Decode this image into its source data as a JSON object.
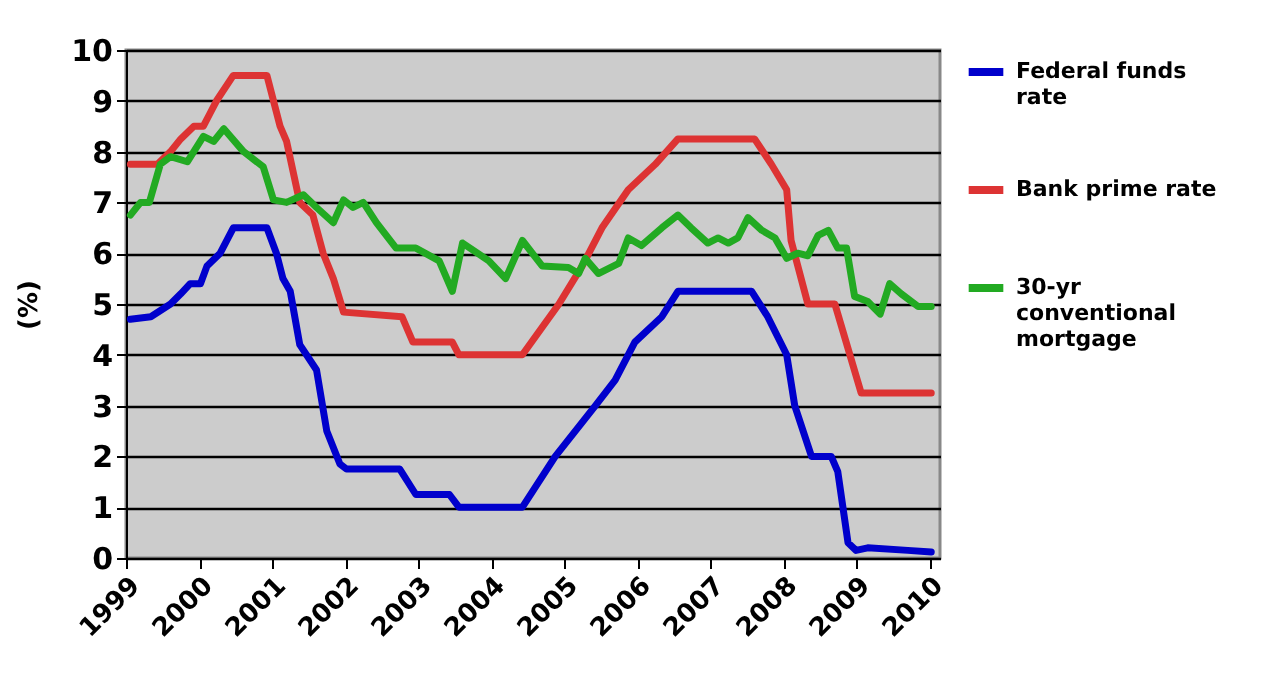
{
  "chart_data": {
    "type": "line",
    "ylabel": "(%)",
    "xlim": [
      1999,
      2010.15
    ],
    "xticks": [
      1999,
      2000,
      2001,
      2002,
      2003,
      2004,
      2005,
      2006,
      2007,
      2008,
      2009,
      2010
    ],
    "ylim": [
      0,
      10
    ],
    "yticks": [
      0,
      1,
      2,
      3,
      4,
      5,
      6,
      7,
      8,
      9,
      10
    ],
    "grid": "y",
    "legend": "right",
    "line_style": "solid",
    "series": [
      {
        "name": "Federal funds rate",
        "color": "#0000cc",
        "x": [
          1999.06,
          1999.34,
          1999.61,
          1999.75,
          1999.88,
          2000.02,
          2000.11,
          2000.29,
          2000.47,
          2000.93,
          2001.06,
          2001.15,
          2001.25,
          2001.38,
          2001.61,
          2001.75,
          2001.93,
          2002.02,
          2002.75,
          2002.97,
          2003.43,
          2003.56,
          2004.43,
          2004.88,
          2005.43,
          2005.7,
          2005.97,
          2006.34,
          2006.56,
          2007.57,
          2007.79,
          2008.05,
          2008.16,
          2008.39,
          2008.66,
          2008.75,
          2008.89,
          2009.0,
          2009.16,
          2009.71,
          2010.03
        ],
        "values": [
          4.7,
          4.75,
          5.0,
          5.2,
          5.4,
          5.4,
          5.75,
          6.0,
          6.5,
          6.5,
          6.0,
          5.5,
          5.25,
          4.2,
          3.7,
          2.5,
          1.85,
          1.75,
          1.75,
          1.25,
          1.25,
          1.0,
          1.0,
          2.0,
          3.0,
          3.5,
          4.25,
          4.75,
          5.25,
          5.25,
          4.75,
          4.0,
          3.0,
          2.0,
          2.0,
          1.7,
          0.3,
          0.15,
          0.2,
          0.15,
          0.12
        ]
      },
      {
        "name": "Bank prime rate",
        "color": "#dd3333",
        "x": [
          1999.06,
          1999.43,
          1999.61,
          1999.75,
          1999.93,
          2000.06,
          2000.15,
          2000.24,
          2000.47,
          2000.93,
          2001.11,
          2001.2,
          2001.38,
          2001.56,
          2001.7,
          2001.84,
          2001.98,
          2002.78,
          2002.93,
          2003.47,
          2003.56,
          2004.43,
          2004.93,
          2005.25,
          2005.52,
          2005.88,
          2006.25,
          2006.56,
          2007.61,
          2007.84,
          2008.05,
          2008.11,
          2008.34,
          2008.71,
          2009.07,
          2010.03
        ],
        "values": [
          7.75,
          7.75,
          8.0,
          8.25,
          8.5,
          8.5,
          8.75,
          9.0,
          9.5,
          9.5,
          8.5,
          8.2,
          7.0,
          6.75,
          6.0,
          5.5,
          4.84,
          4.75,
          4.25,
          4.25,
          4.0,
          4.0,
          5.0,
          5.75,
          6.5,
          7.25,
          7.75,
          8.25,
          8.25,
          7.75,
          7.25,
          6.25,
          5.0,
          5.0,
          3.25,
          3.25
        ]
      },
      {
        "name": "30-yr conventional mortgage",
        "color": "#22aa22",
        "x": [
          1999.06,
          1999.2,
          1999.32,
          1999.47,
          1999.61,
          1999.84,
          2000.06,
          2000.2,
          2000.34,
          2000.61,
          2000.88,
          2001.02,
          2001.2,
          2001.43,
          2001.61,
          2001.84,
          2001.98,
          2002.11,
          2002.25,
          2002.43,
          2002.7,
          2002.97,
          2003.29,
          2003.47,
          2003.61,
          2003.97,
          2004.2,
          2004.43,
          2004.7,
          2005.06,
          2005.2,
          2005.29,
          2005.47,
          2005.75,
          2005.88,
          2006.06,
          2006.34,
          2006.56,
          2006.74,
          2006.97,
          2007.11,
          2007.25,
          2007.38,
          2007.52,
          2007.71,
          2007.89,
          2008.05,
          2008.2,
          2008.34,
          2008.48,
          2008.62,
          2008.75,
          2008.87,
          2008.98,
          2009.16,
          2009.33,
          2009.46,
          2009.62,
          2009.85,
          2010.03
        ],
        "values": [
          6.75,
          7.0,
          7.0,
          7.75,
          7.9,
          7.8,
          8.3,
          8.2,
          8.45,
          8.0,
          7.7,
          7.05,
          7.0,
          7.15,
          6.9,
          6.6,
          7.05,
          6.9,
          7.0,
          6.6,
          6.1,
          6.1,
          5.85,
          5.25,
          6.2,
          5.85,
          5.5,
          6.25,
          5.75,
          5.72,
          5.6,
          5.9,
          5.6,
          5.8,
          6.3,
          6.15,
          6.5,
          6.75,
          6.5,
          6.2,
          6.3,
          6.2,
          6.3,
          6.7,
          6.45,
          6.3,
          5.9,
          6.0,
          5.95,
          6.35,
          6.45,
          6.1,
          6.1,
          5.15,
          5.05,
          4.8,
          5.4,
          5.2,
          4.95,
          4.95
        ]
      }
    ]
  }
}
